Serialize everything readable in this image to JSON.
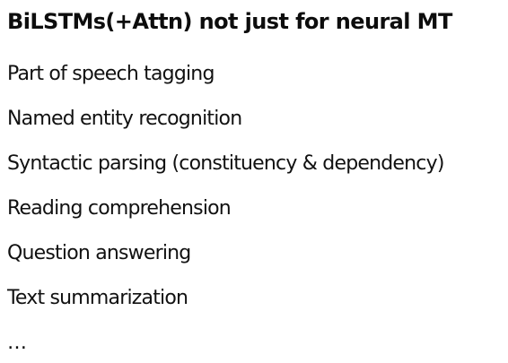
{
  "slide": {
    "title": "BiLSTMs(+Attn) not just for neural MT",
    "items": [
      "Part of speech tagging",
      "Named entity recognition",
      "Syntactic parsing (constituency & dependency)",
      "Reading comprehension",
      "Question answering",
      "Text summarization",
      "…"
    ]
  }
}
